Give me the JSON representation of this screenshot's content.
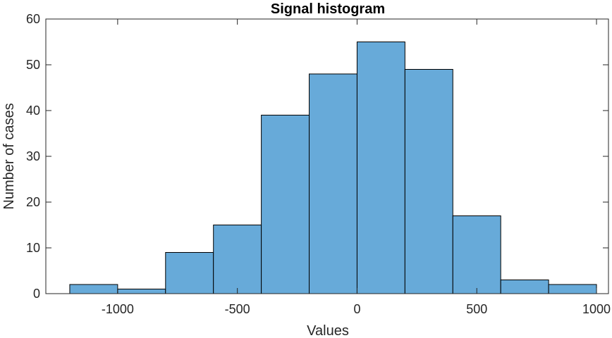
{
  "chart_data": {
    "type": "bar",
    "title": "Signal histogram",
    "xlabel": "Values",
    "ylabel": "Number of cases",
    "xlim": [
      -1300,
      1050
    ],
    "ylim": [
      0,
      60
    ],
    "bin_edges": [
      -1200,
      -1000,
      -800,
      -600,
      -400,
      -200,
      0,
      200,
      400,
      600,
      800,
      1000
    ],
    "values": [
      2,
      1,
      9,
      15,
      39,
      48,
      55,
      49,
      17,
      3,
      2
    ],
    "x_ticks": [
      -1000,
      -500,
      0,
      500,
      1000
    ],
    "x_tick_labels": [
      "-1000",
      "-500",
      "0",
      "500",
      "1000"
    ],
    "y_ticks": [
      0,
      10,
      20,
      30,
      40,
      50,
      60
    ],
    "y_tick_labels": [
      "0",
      "10",
      "20",
      "30",
      "40",
      "50",
      "60"
    ],
    "grid": false,
    "bar_color": "#67aad9",
    "edge_color": "#000000"
  }
}
